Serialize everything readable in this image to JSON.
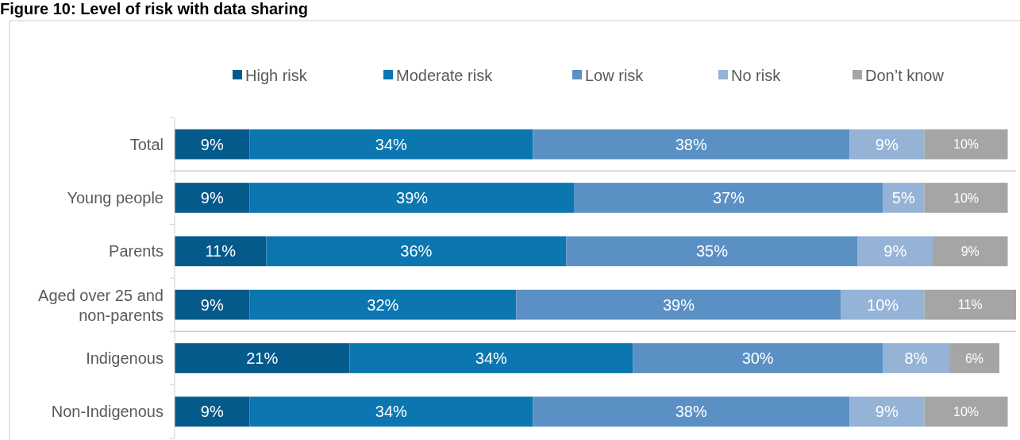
{
  "chart_data": {
    "type": "bar",
    "orientation": "horizontal",
    "stacked": true,
    "title": "Figure 10: Level of risk with data sharing",
    "categories": [
      "Total",
      "Young people",
      "Parents",
      "Aged over 25 and non-parents",
      "Indigenous",
      "Non-Indigenous"
    ],
    "series": [
      {
        "name": "High risk",
        "color": "#055a8c",
        "values": [
          9,
          9,
          11,
          9,
          21,
          9
        ],
        "value_labels": [
          "9%",
          "9%",
          "11%",
          "9%",
          "21%",
          "9%"
        ]
      },
      {
        "name": "Moderate risk",
        "color": "#0b76b0",
        "values": [
          34,
          39,
          36,
          32,
          34,
          34
        ],
        "value_labels": [
          "34%",
          "39%",
          "36%",
          "32%",
          "34%",
          "34%"
        ]
      },
      {
        "name": "Low risk",
        "color": "#5b90c4",
        "values": [
          38,
          37,
          35,
          39,
          30,
          38
        ],
        "value_labels": [
          "38%",
          "37%",
          "35%",
          "39%",
          "30%",
          "38%"
        ]
      },
      {
        "name": "No risk",
        "color": "#94b3d6",
        "values": [
          9,
          5,
          9,
          10,
          8,
          9
        ],
        "value_labels": [
          "9%",
          "5%",
          "9%",
          "10%",
          "8%",
          "9%"
        ]
      },
      {
        "name": "Don’t know",
        "color": "#a5a5a5",
        "values": [
          10,
          10,
          9,
          11,
          6,
          10
        ],
        "value_labels": [
          "10%",
          "10%",
          "9%",
          "11%",
          "6%",
          "10%"
        ]
      }
    ],
    "legend": "top"
  }
}
